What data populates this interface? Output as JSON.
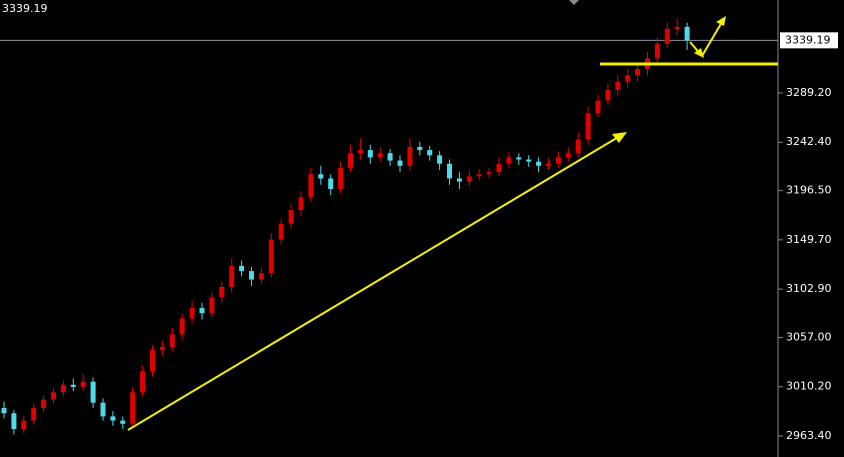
{
  "chart_data": {
    "type": "candlestick",
    "current_price": 3339.19,
    "up_color": "#e00000",
    "down_color": "#4fd8e8",
    "ylim": [
      2943.45,
      3377.5
    ],
    "yticks": [
      {
        "value": 2963.4,
        "label": "2963.40"
      },
      {
        "value": 3010.2,
        "label": "3010.20"
      },
      {
        "value": 3057.0,
        "label": "3057.00"
      },
      {
        "value": 3102.9,
        "label": "3102.90"
      },
      {
        "value": 3149.7,
        "label": "3149.70"
      },
      {
        "value": 3196.5,
        "label": "3196.50"
      },
      {
        "value": 3242.4,
        "label": "3242.40"
      },
      {
        "value": 3289.2,
        "label": "3289.20"
      }
    ],
    "ohlc": [
      [
        2990,
        2996,
        2980,
        2985
      ],
      [
        2985,
        2988,
        2965,
        2970
      ],
      [
        2970,
        2982,
        2966,
        2978
      ],
      [
        2978,
        2994,
        2974,
        2990
      ],
      [
        2990,
        3002,
        2986,
        2998
      ],
      [
        2998,
        3009,
        2994,
        3005
      ],
      [
        3005,
        3016,
        3001,
        3012
      ],
      [
        3012,
        3018,
        3006,
        3010
      ],
      [
        3010,
        3022,
        3006,
        3015
      ],
      [
        3015,
        3019,
        2990,
        2995
      ],
      [
        2995,
        2999,
        2978,
        2982
      ],
      [
        2982,
        2987,
        2973,
        2978
      ],
      [
        2978,
        2982,
        2970,
        2975
      ],
      [
        2975,
        3010,
        2972,
        3005
      ],
      [
        3005,
        3030,
        3001,
        3025
      ],
      [
        3025,
        3050,
        3020,
        3045
      ],
      [
        3045,
        3054,
        3040,
        3048
      ],
      [
        3048,
        3066,
        3044,
        3060
      ],
      [
        3060,
        3080,
        3055,
        3075
      ],
      [
        3075,
        3092,
        3070,
        3085
      ],
      [
        3085,
        3090,
        3074,
        3080
      ],
      [
        3080,
        3100,
        3076,
        3095
      ],
      [
        3095,
        3110,
        3090,
        3105
      ],
      [
        3105,
        3132,
        3100,
        3125
      ],
      [
        3125,
        3130,
        3115,
        3120
      ],
      [
        3120,
        3124,
        3106,
        3112
      ],
      [
        3112,
        3124,
        3108,
        3118
      ],
      [
        3118,
        3156,
        3114,
        3150
      ],
      [
        3150,
        3170,
        3145,
        3165
      ],
      [
        3165,
        3184,
        3160,
        3178
      ],
      [
        3178,
        3196,
        3172,
        3190
      ],
      [
        3190,
        3218,
        3186,
        3212
      ],
      [
        3212,
        3220,
        3202,
        3208
      ],
      [
        3208,
        3212,
        3192,
        3198
      ],
      [
        3198,
        3224,
        3194,
        3218
      ],
      [
        3218,
        3240,
        3214,
        3232
      ],
      [
        3232,
        3246,
        3226,
        3235
      ],
      [
        3235,
        3240,
        3222,
        3228
      ],
      [
        3228,
        3238,
        3224,
        3232
      ],
      [
        3232,
        3236,
        3220,
        3225
      ],
      [
        3225,
        3230,
        3214,
        3220
      ],
      [
        3220,
        3246,
        3216,
        3238
      ],
      [
        3238,
        3243,
        3230,
        3235
      ],
      [
        3235,
        3239,
        3225,
        3230
      ],
      [
        3230,
        3234,
        3216,
        3222
      ],
      [
        3222,
        3226,
        3202,
        3208
      ],
      [
        3208,
        3214,
        3198,
        3205
      ],
      [
        3205,
        3216,
        3201,
        3210
      ],
      [
        3210,
        3217,
        3206,
        3212
      ],
      [
        3212,
        3218,
        3208,
        3214
      ],
      [
        3214,
        3228,
        3210,
        3222
      ],
      [
        3222,
        3233,
        3218,
        3228
      ],
      [
        3228,
        3232,
        3221,
        3226
      ],
      [
        3226,
        3230,
        3219,
        3224
      ],
      [
        3224,
        3228,
        3214,
        3220
      ],
      [
        3220,
        3227,
        3216,
        3222
      ],
      [
        3222,
        3233,
        3218,
        3228
      ],
      [
        3228,
        3238,
        3224,
        3232
      ],
      [
        3232,
        3252,
        3228,
        3245
      ],
      [
        3245,
        3276,
        3240,
        3270
      ],
      [
        3270,
        3288,
        3266,
        3282
      ],
      [
        3282,
        3298,
        3278,
        3292
      ],
      [
        3292,
        3306,
        3286,
        3300
      ],
      [
        3300,
        3312,
        3294,
        3306
      ],
      [
        3306,
        3318,
        3300,
        3312
      ],
      [
        3312,
        3328,
        3306,
        3322
      ],
      [
        3322,
        3342,
        3318,
        3336
      ],
      [
        3336,
        3356,
        3332,
        3350
      ],
      [
        3350,
        3360,
        3344,
        3352
      ],
      [
        3352,
        3356,
        3330,
        3339.19
      ]
    ]
  }
}
